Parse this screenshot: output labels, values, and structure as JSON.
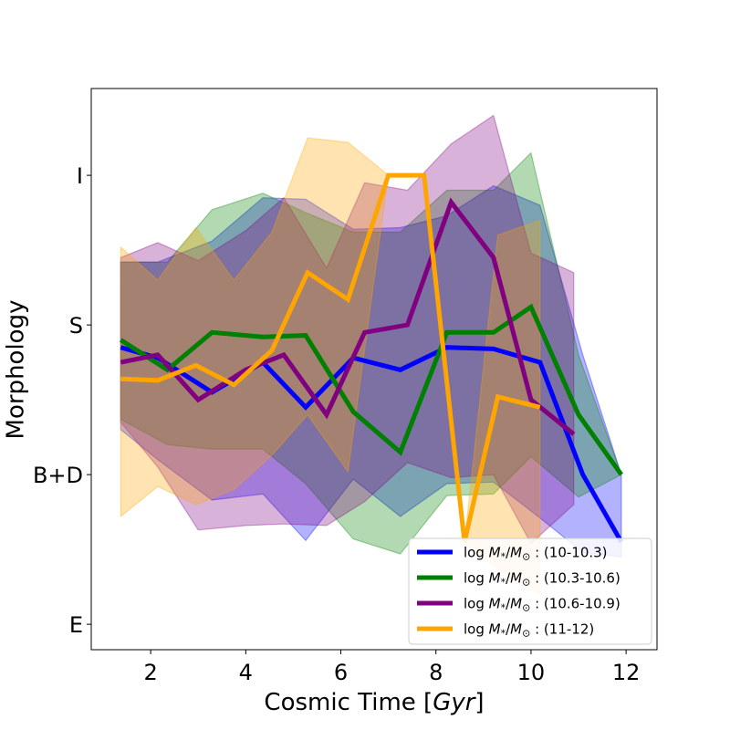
{
  "chart_data": {
    "type": "line",
    "title": "",
    "xlabel_prefix": "Cosmic Time [",
    "xlabel_var": "Gyr",
    "xlabel_suffix": "]",
    "ylabel": "Morphology",
    "xlim": [
      0.75,
      12.65
    ],
    "ylim": [
      -0.17,
      3.58
    ],
    "xticks": [
      2,
      4,
      6,
      8,
      10,
      12
    ],
    "yticks": [
      {
        "value": 0,
        "label": "E"
      },
      {
        "value": 1,
        "label": "B+D"
      },
      {
        "value": 2,
        "label": "S"
      },
      {
        "value": 3,
        "label": "I"
      }
    ],
    "legend": {
      "position": "lower-right"
    },
    "grid": false,
    "series": [
      {
        "name": "log M*/M⊙ : (10-10.3)",
        "legend_label": "(10-10.3)",
        "color": "#0000ff",
        "x": [
          1.37,
          2.15,
          3.29,
          4.36,
          5.26,
          6.26,
          7.25,
          8.23,
          9.21,
          10.19,
          11.09,
          11.9
        ],
        "y": [
          1.85,
          1.78,
          1.55,
          1.75,
          1.45,
          1.78,
          1.7,
          1.85,
          1.84,
          1.75,
          1.0,
          0.55
        ],
        "upper": [
          2.42,
          2.42,
          2.56,
          2.85,
          2.84,
          2.64,
          2.65,
          2.73,
          2.93,
          2.8,
          1.8,
          1.0
        ],
        "lower": [
          1.3,
          1.1,
          0.83,
          0.87,
          0.56,
          0.97,
          0.72,
          0.94,
          0.95,
          0.71,
          0.48,
          0.45
        ]
      },
      {
        "name": "log M*/M⊙ : (10.3-10.6)",
        "legend_label": "(10.3-10.6)",
        "color": "#008000",
        "x": [
          1.37,
          2.35,
          3.29,
          4.36,
          5.26,
          6.26,
          7.25,
          8.23,
          9.21,
          10.0,
          11.0,
          11.9
        ],
        "y": [
          1.9,
          1.7,
          1.95,
          1.92,
          1.93,
          1.42,
          1.15,
          1.95,
          1.95,
          2.12,
          1.4,
          1.0
        ],
        "upper": [
          2.42,
          2.42,
          2.77,
          2.88,
          2.75,
          2.62,
          2.62,
          2.9,
          2.9,
          3.15,
          1.8,
          1.0
        ],
        "lower": [
          1.37,
          1.2,
          1.17,
          1.17,
          0.94,
          0.57,
          0.47,
          0.86,
          0.87,
          1.12,
          0.85,
          1.0
        ]
      },
      {
        "name": "log M*/M⊙ : (10.6-10.9)",
        "legend_label": "(10.6-10.9)",
        "color": "#800080",
        "x": [
          1.37,
          2.15,
          3.0,
          4.0,
          4.8,
          5.7,
          6.5,
          7.4,
          8.32,
          9.21,
          10.0,
          10.9
        ],
        "y": [
          1.75,
          1.8,
          1.5,
          1.7,
          1.8,
          1.4,
          1.95,
          2.0,
          2.82,
          2.45,
          1.5,
          1.27
        ],
        "upper": [
          2.45,
          2.55,
          2.43,
          2.63,
          2.85,
          2.38,
          2.95,
          2.9,
          3.21,
          3.4,
          2.48,
          2.35
        ],
        "lower": [
          1.35,
          1.05,
          0.63,
          0.66,
          0.67,
          0.66,
          0.82,
          1.08,
          0.98,
          1.0,
          0.54,
          0.8
        ]
      },
      {
        "name": "log M*/M⊙ : (11-12)",
        "legend_label": "(11-12)",
        "color": "#ffa500",
        "x": [
          1.37,
          2.15,
          2.95,
          3.75,
          4.55,
          5.3,
          6.15,
          7.0,
          7.75,
          8.6,
          9.3,
          10.19
        ],
        "y": [
          1.64,
          1.63,
          1.73,
          1.6,
          1.83,
          2.35,
          2.17,
          3.0,
          3.0,
          0.55,
          1.52,
          1.45
        ],
        "upper": [
          2.52,
          2.3,
          2.65,
          2.3,
          2.62,
          3.25,
          3.22,
          3.0,
          3.0,
          0.55,
          2.6,
          2.7
        ],
        "lower": [
          0.72,
          0.92,
          0.8,
          0.9,
          1.13,
          1.4,
          1.02,
          3.0,
          3.0,
          0.55,
          0.37,
          0.2
        ]
      }
    ],
    "legend_prefix_text": "log M*/M⊙ :"
  }
}
